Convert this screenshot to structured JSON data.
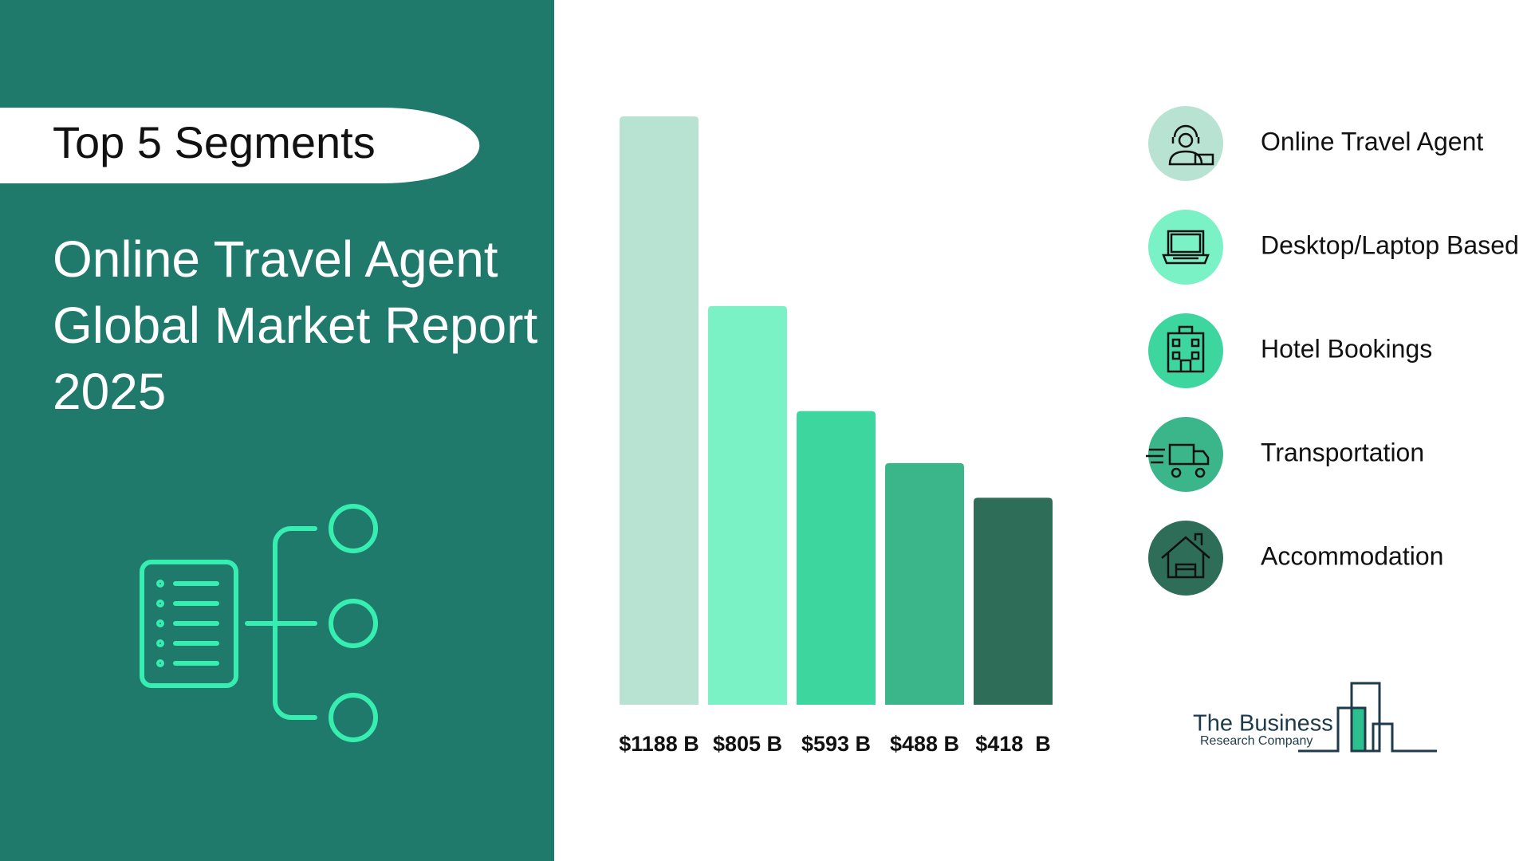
{
  "chart_data": {
    "type": "bar",
    "badge": "Top 5 Segments",
    "title_lines": [
      "Online Travel Agent",
      "Global Market Report",
      "2025"
    ],
    "categories": [
      "Online Travel Agent",
      "Desktop/Laptop Based",
      "Hotel Bookings",
      "Transportation",
      "Accommodation"
    ],
    "values": [
      1188,
      805,
      593,
      488,
      418
    ],
    "value_labels": [
      "$1188 B",
      "$805 B",
      "$593 B",
      "$488 B",
      "$418  B"
    ],
    "colors": [
      "#b8e3d3",
      "#7af2c6",
      "#3dd69f",
      "#3bb58a",
      "#2e6e58"
    ],
    "logo": [
      "The Business",
      "Research Company"
    ]
  }
}
